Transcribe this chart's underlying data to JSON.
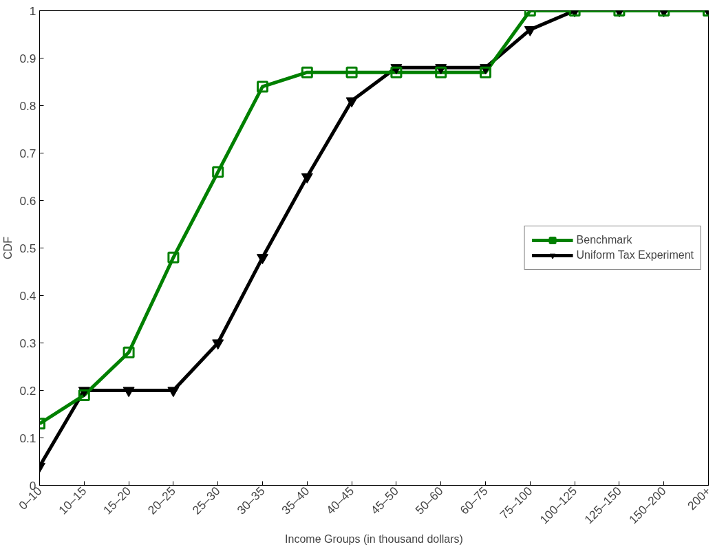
{
  "chart_data": {
    "type": "line",
    "xlabel": "Income Groups (in thousand dollars)",
    "ylabel": "CDF",
    "categories": [
      "0–10",
      "10–15",
      "15–20",
      "20–25",
      "25–30",
      "30–35",
      "35–40",
      "40–45",
      "45–50",
      "50–60",
      "60–75",
      "75–100",
      "100–125",
      "125–150",
      "150–200",
      "200+"
    ],
    "ylim": [
      0,
      1
    ],
    "yticks": [
      0,
      0.1,
      0.2,
      0.3,
      0.4,
      0.5,
      0.6,
      0.7,
      0.8,
      0.9,
      1
    ],
    "grid": false,
    "legend": "right",
    "line_style": "solid",
    "series": [
      {
        "name": "Benchmark",
        "color": "#008000",
        "marker": "square",
        "values": [
          0.13,
          0.19,
          0.28,
          0.48,
          0.66,
          0.84,
          0.87,
          0.87,
          0.87,
          0.87,
          0.87,
          1,
          1,
          1,
          1,
          1
        ]
      },
      {
        "name": "Uniform Tax Experiment",
        "color": "#000000",
        "marker": "triangle",
        "values": [
          0.04,
          0.2,
          0.2,
          0.2,
          0.3,
          0.48,
          0.65,
          0.81,
          0.88,
          0.88,
          0.88,
          0.96,
          1,
          1,
          1,
          1
        ]
      }
    ]
  }
}
